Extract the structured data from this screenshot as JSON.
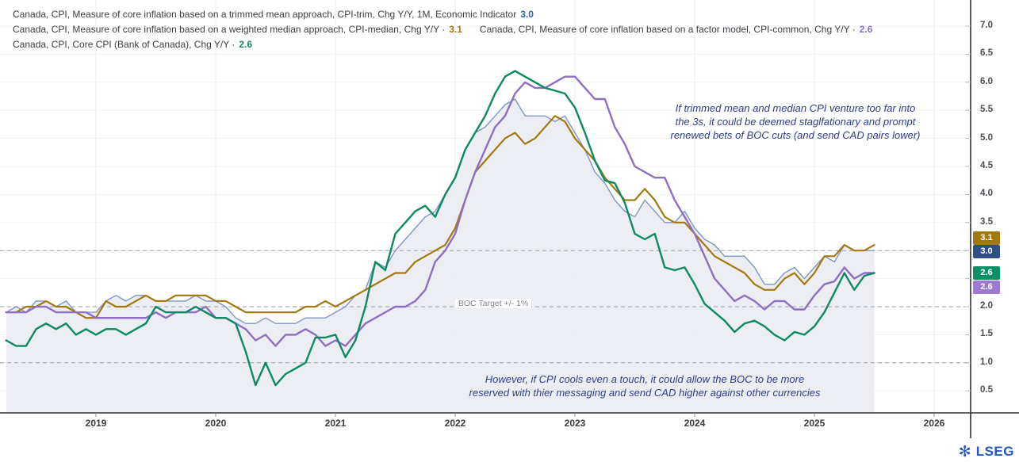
{
  "legend": {
    "row1": {
      "label": "Canada, CPI, Measure of core inflation based on a trimmed mean approach, CPI-trim, Chg Y/Y, 1M, Economic Indicator",
      "value": "3.0"
    },
    "row2a": {
      "label": "Canada, CPI, Measure of core inflation based on a weighted median approach, CPI-median, Chg Y/Y ·",
      "value": "3.1"
    },
    "row2b": {
      "label": "Canada, CPI, Measure of core inflation based on a factor model, CPI-common, Chg Y/Y ·",
      "value": "2.6"
    },
    "row3": {
      "label": "Canada, CPI, Core CPI (Bank of Canada), Chg Y/Y ·",
      "value": "2.6"
    }
  },
  "annotations": {
    "top": "If trimmed mean and median CPI venture too far into\nthe 3s, it could be deemed staglfationary and prompt\nrenewed bets of BOC cuts (and send CAD pairs lower)",
    "bottom": "However, if CPI cools even a touch, it could allow the BOC to be more\nreserved with thier messaging and send CAD higher against other currencies",
    "boc_target": "BOC Target +/- 1%"
  },
  "logo": {
    "wordmark": "LSEG",
    "glyph": "✻",
    "color": "#2257d0"
  },
  "badges": [
    {
      "value": "3.1",
      "color": "#a1790e",
      "series": "CPI-median"
    },
    {
      "value": "3.0",
      "color": "#2d5185",
      "series": "CPI-trim"
    },
    {
      "value": "2.6",
      "color": "#0c9069",
      "series": "Core CPI (Bank of Canada)"
    },
    {
      "value": "2.6",
      "color": "#9d79d2",
      "series": "CPI-common"
    }
  ],
  "chart_data": {
    "type": "line",
    "title": "",
    "frequency": "monthly",
    "x_start": "2018-04",
    "x_end": "2025-07",
    "x_tick_labels": [
      "2019",
      "2020",
      "2021",
      "2022",
      "2023",
      "2024",
      "2025",
      "2026"
    ],
    "y_ticks": [
      0.5,
      1.0,
      1.5,
      2.0,
      2.5,
      3.0,
      3.5,
      4.0,
      4.5,
      5.0,
      5.5,
      6.0,
      6.5,
      7.0
    ],
    "y_ticks_hidden_by_badges": [
      2.5,
      3.0
    ],
    "ylim": [
      0.1,
      7.45
    ],
    "grid": true,
    "dashed_reference_lines": [
      1.0,
      2.0,
      3.0
    ],
    "legend_position": "top-left",
    "series": [
      {
        "name": "CPI-trim",
        "line_color": "#7e96c3",
        "value_color": "#3465a8",
        "area_fill": "#e9ecf2",
        "line_width": 1.4,
        "last_value": "3.0",
        "values": [
          1.9,
          2.0,
          1.9,
          2.1,
          2.1,
          2.0,
          2.1,
          1.9,
          1.9,
          1.9,
          2.1,
          2.2,
          2.1,
          2.2,
          2.2,
          2.1,
          2.1,
          2.1,
          2.1,
          2.2,
          2.1,
          2.1,
          2.0,
          1.8,
          1.7,
          1.7,
          1.8,
          1.7,
          1.7,
          1.7,
          1.8,
          1.8,
          1.8,
          1.9,
          2.0,
          2.2,
          2.3,
          2.8,
          2.7,
          3.0,
          3.2,
          3.4,
          3.6,
          3.7,
          4.0,
          4.3,
          4.8,
          5.1,
          5.2,
          5.4,
          5.6,
          5.7,
          5.4,
          5.4,
          5.4,
          5.3,
          5.4,
          5.1,
          4.8,
          4.4,
          4.2,
          3.9,
          3.7,
          3.6,
          3.9,
          3.7,
          3.5,
          3.5,
          3.7,
          3.4,
          3.2,
          3.1,
          2.9,
          2.9,
          2.9,
          2.7,
          2.4,
          2.4,
          2.6,
          2.7,
          2.5,
          2.7,
          2.9,
          2.8,
          3.1,
          3.0,
          3.0,
          3.0
        ]
      },
      {
        "name": "CPI-median",
        "line_color": "#a1790e",
        "value_color": "#a1790e",
        "line_width": 2.2,
        "last_value": "3.1",
        "values": [
          1.9,
          1.9,
          2.0,
          2.0,
          2.1,
          2.0,
          2.0,
          1.9,
          1.8,
          1.8,
          2.1,
          2.0,
          2.0,
          2.1,
          2.2,
          2.1,
          2.1,
          2.2,
          2.2,
          2.2,
          2.2,
          2.1,
          2.1,
          2.0,
          1.9,
          1.9,
          1.9,
          1.9,
          1.9,
          1.9,
          2.0,
          2.0,
          2.1,
          2.0,
          2.1,
          2.2,
          2.3,
          2.4,
          2.5,
          2.6,
          2.6,
          2.8,
          2.9,
          3.0,
          3.1,
          3.4,
          3.9,
          4.4,
          4.6,
          4.8,
          5.0,
          5.1,
          4.9,
          5.0,
          5.2,
          5.4,
          5.3,
          5.0,
          4.8,
          4.6,
          4.3,
          4.1,
          3.9,
          3.9,
          4.1,
          3.9,
          3.6,
          3.5,
          3.5,
          3.3,
          3.1,
          2.9,
          2.8,
          2.7,
          2.6,
          2.4,
          2.3,
          2.3,
          2.5,
          2.6,
          2.4,
          2.6,
          2.9,
          2.9,
          3.1,
          3.0,
          3.0,
          3.1
        ]
      },
      {
        "name": "CPI-common",
        "line_color": "#8f6fc1",
        "value_color": "#8d6fc0",
        "line_width": 2.4,
        "last_value": "2.6",
        "values": [
          1.9,
          1.9,
          1.9,
          2.0,
          2.0,
          1.9,
          1.9,
          1.9,
          1.9,
          1.8,
          1.8,
          1.8,
          1.8,
          1.8,
          1.8,
          1.9,
          1.8,
          1.9,
          1.9,
          1.9,
          2.0,
          1.8,
          1.8,
          1.7,
          1.6,
          1.4,
          1.5,
          1.3,
          1.5,
          1.5,
          1.6,
          1.5,
          1.3,
          1.4,
          1.3,
          1.5,
          1.7,
          1.8,
          1.9,
          2.0,
          2.0,
          2.1,
          2.3,
          2.8,
          3.0,
          3.3,
          3.9,
          4.4,
          4.8,
          5.2,
          5.4,
          5.8,
          6.0,
          5.9,
          5.9,
          6.0,
          6.1,
          6.1,
          5.9,
          5.7,
          5.7,
          5.2,
          4.9,
          4.5,
          4.4,
          4.3,
          4.3,
          3.9,
          3.6,
          3.3,
          2.9,
          2.5,
          2.3,
          2.1,
          2.2,
          2.1,
          1.95,
          2.1,
          2.1,
          1.95,
          1.95,
          2.2,
          2.4,
          2.45,
          2.7,
          2.5,
          2.6,
          2.6
        ]
      },
      {
        "name": "Core CPI (Bank of Canada)",
        "line_color": "#0e8a62",
        "value_color": "#0f8a63",
        "line_width": 2.4,
        "last_value": "2.6",
        "values": [
          1.4,
          1.3,
          1.3,
          1.6,
          1.7,
          1.6,
          1.7,
          1.5,
          1.6,
          1.5,
          1.6,
          1.6,
          1.5,
          1.6,
          1.7,
          2.0,
          1.9,
          1.9,
          1.9,
          2.0,
          1.9,
          1.8,
          1.8,
          1.7,
          1.2,
          0.6,
          1.0,
          0.6,
          0.8,
          0.9,
          1.0,
          1.45,
          1.45,
          1.5,
          1.1,
          1.4,
          2.0,
          2.8,
          2.65,
          3.3,
          3.5,
          3.7,
          3.8,
          3.6,
          4.0,
          4.3,
          4.8,
          5.1,
          5.4,
          5.8,
          6.1,
          6.2,
          6.1,
          6.0,
          5.9,
          5.85,
          5.8,
          5.55,
          5.1,
          4.6,
          4.25,
          4.2,
          3.85,
          3.3,
          3.2,
          3.3,
          2.7,
          2.65,
          2.7,
          2.4,
          2.05,
          1.9,
          1.75,
          1.55,
          1.7,
          1.75,
          1.65,
          1.5,
          1.4,
          1.55,
          1.5,
          1.65,
          1.9,
          2.25,
          2.6,
          2.3,
          2.55,
          2.6
        ]
      }
    ]
  }
}
